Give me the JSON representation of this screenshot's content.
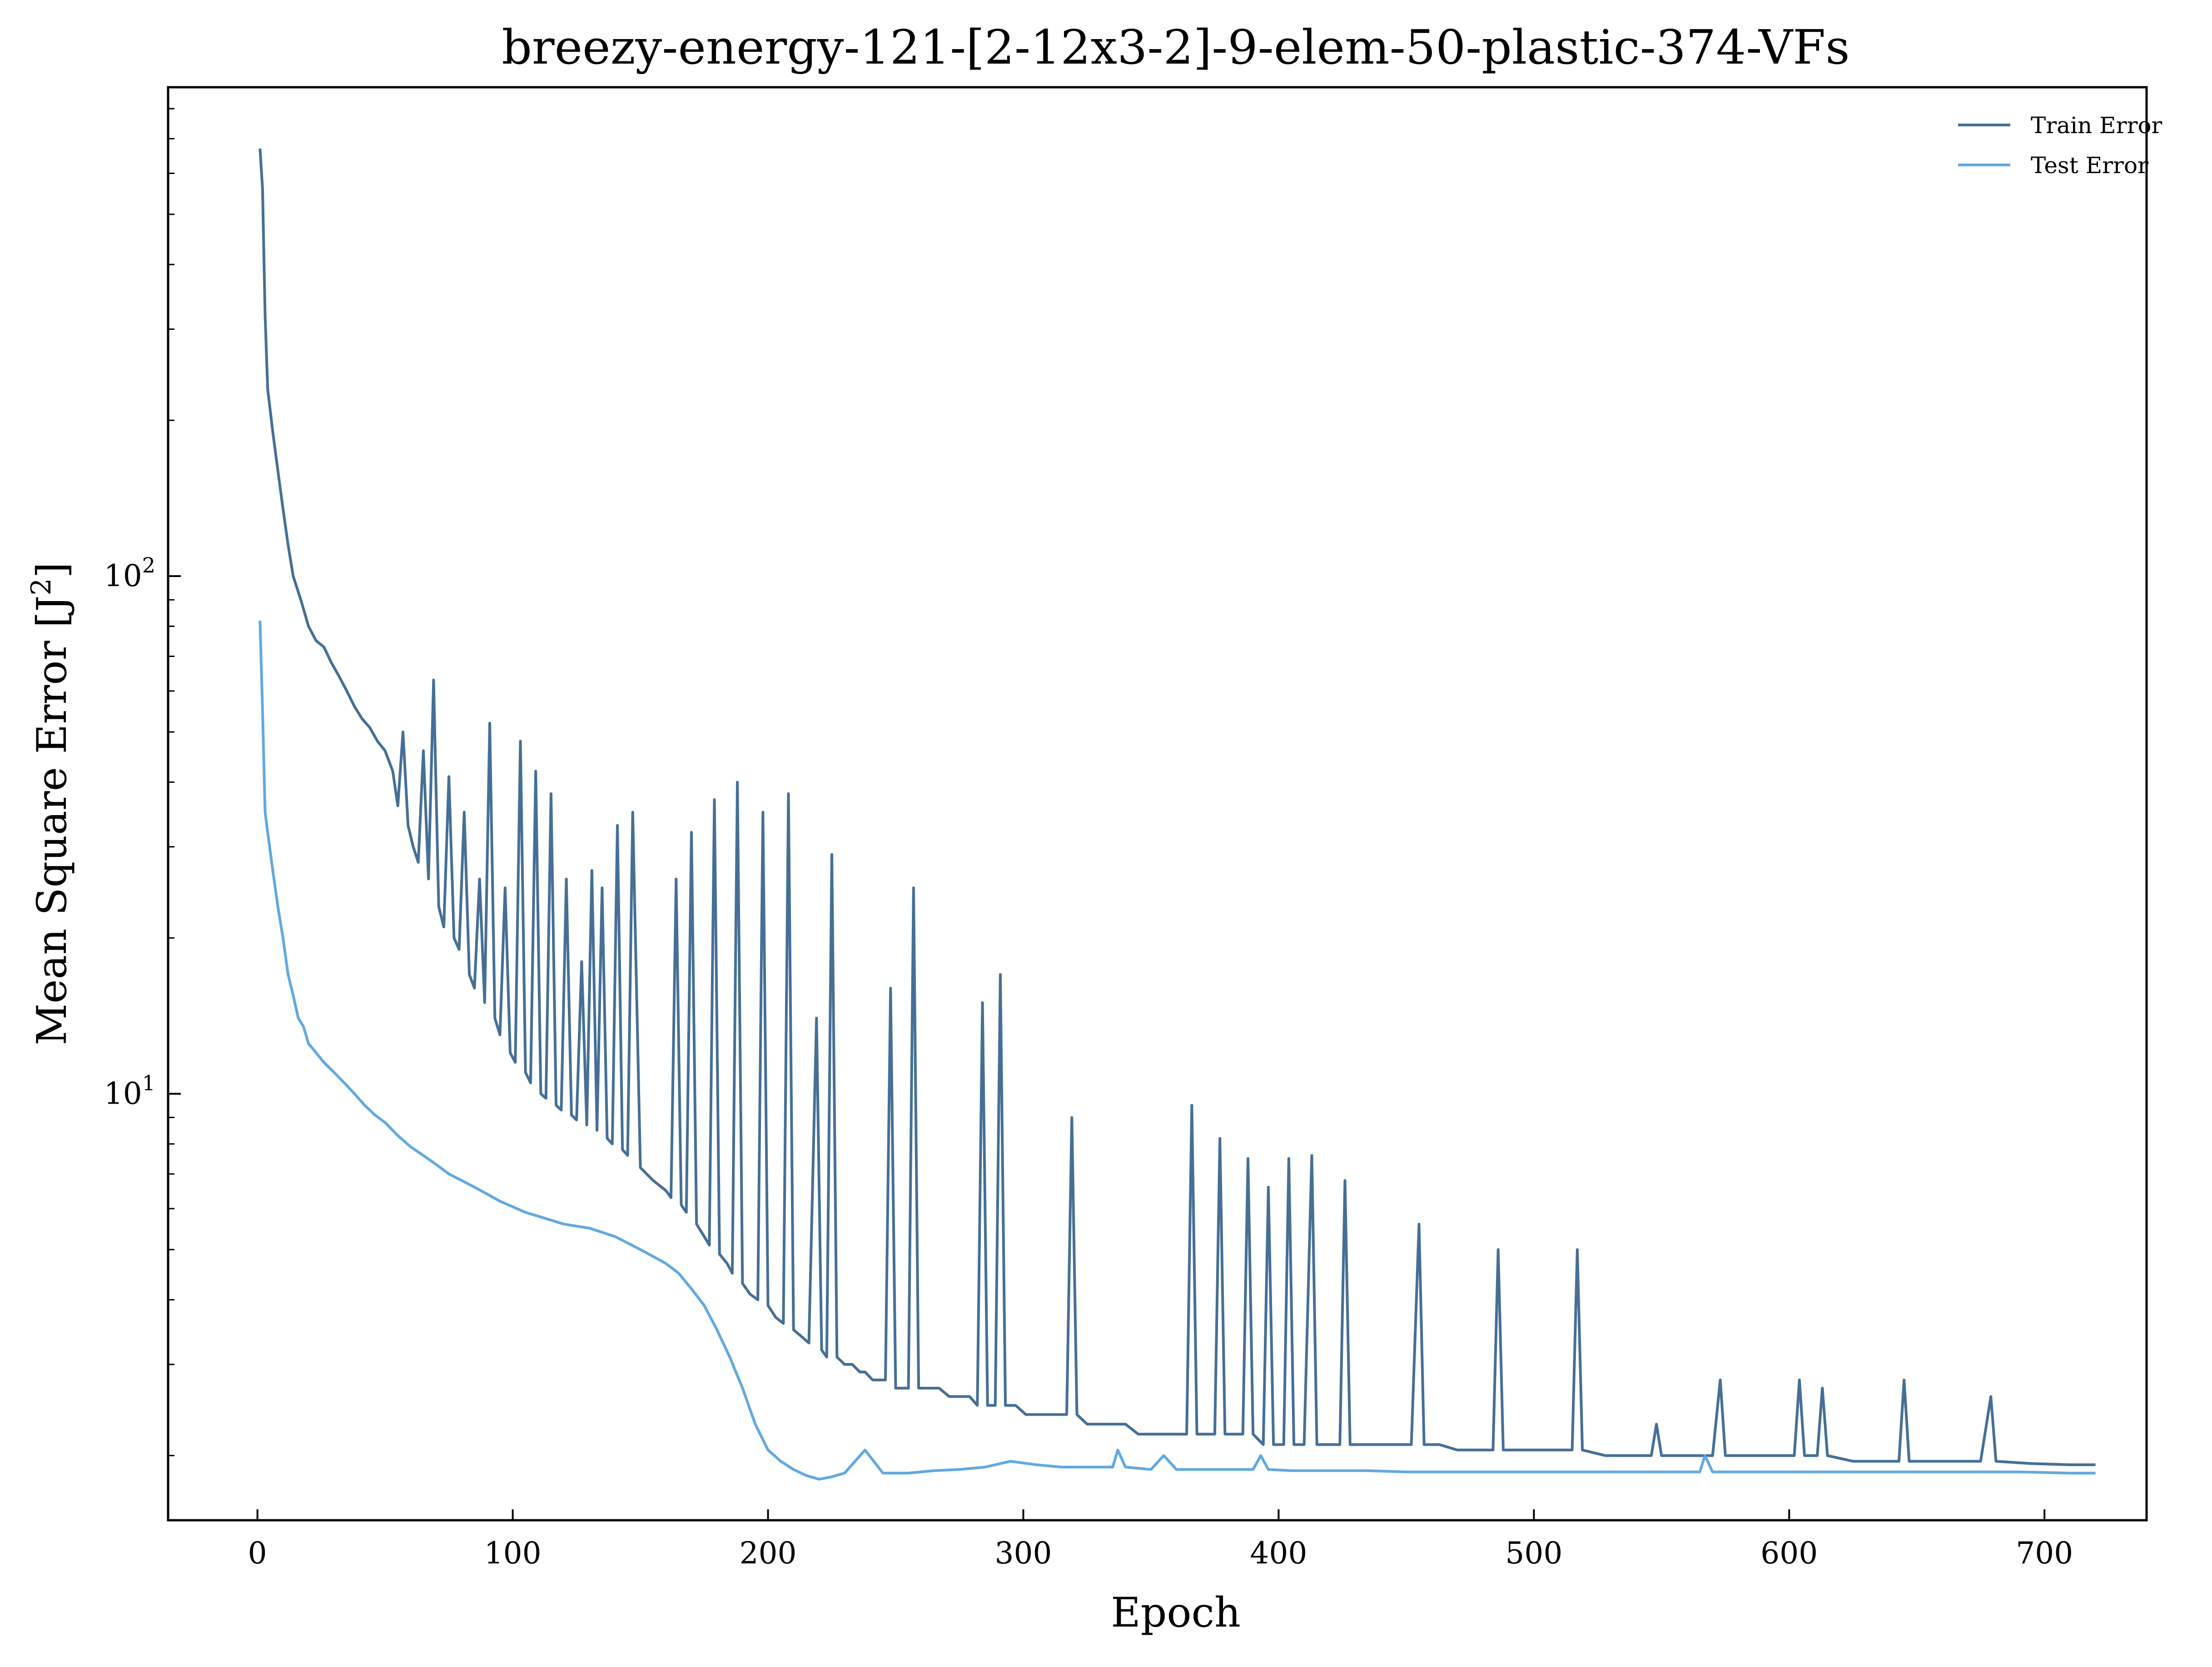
{
  "chart_data": {
    "type": "line",
    "title": "breezy-energy-121-[2-12x3-2]-9-elem-50-plastic-374-VFs",
    "xlabel": "Epoch",
    "ylabel": "Mean Square Error [J²]",
    "ylabel_base": "Mean Square Error [J",
    "ylabel_sup": "2",
    "ylabel_end": "]",
    "x_ticks": [
      0,
      100,
      200,
      300,
      400,
      500,
      600,
      700
    ],
    "x_tick_labels": [
      "0",
      "100",
      "200",
      "300",
      "400",
      "500",
      "600",
      "700"
    ],
    "y_scale": "log",
    "y_major_ticks": [
      {
        "value": 10,
        "base": "10",
        "exp": "1"
      },
      {
        "value": 100,
        "base": "10",
        "exp": "2"
      }
    ],
    "xlim": [
      -35,
      740
    ],
    "ylim": [
      1.5,
      880
    ],
    "grid": false,
    "legend": "top-right",
    "series": [
      {
        "name": "Train Error",
        "color": "#456f96",
        "points": [
          [
            1,
            670
          ],
          [
            2,
            560
          ],
          [
            3,
            320
          ],
          [
            4,
            230
          ],
          [
            6,
            190
          ],
          [
            8,
            160
          ],
          [
            10,
            135
          ],
          [
            12,
            115
          ],
          [
            14,
            100
          ],
          [
            17,
            90
          ],
          [
            20,
            80
          ],
          [
            23,
            75
          ],
          [
            26,
            73
          ],
          [
            29,
            68
          ],
          [
            32,
            64
          ],
          [
            35,
            60
          ],
          [
            38,
            56
          ],
          [
            41,
            53
          ],
          [
            44,
            51
          ],
          [
            47,
            48
          ],
          [
            50,
            46
          ],
          [
            53,
            42
          ],
          [
            55,
            36
          ],
          [
            57,
            50
          ],
          [
            59,
            33
          ],
          [
            61,
            30
          ],
          [
            63,
            28
          ],
          [
            65,
            46
          ],
          [
            67,
            26
          ],
          [
            69,
            63
          ],
          [
            71,
            23
          ],
          [
            73,
            21
          ],
          [
            75,
            41
          ],
          [
            77,
            20
          ],
          [
            79,
            19
          ],
          [
            81,
            35
          ],
          [
            83,
            17
          ],
          [
            85,
            16
          ],
          [
            87,
            26
          ],
          [
            89,
            15
          ],
          [
            91,
            52
          ],
          [
            93,
            14
          ],
          [
            95,
            13
          ],
          [
            97,
            25
          ],
          [
            99,
            12
          ],
          [
            101,
            11.5
          ],
          [
            103,
            48
          ],
          [
            105,
            11
          ],
          [
            107,
            10.5
          ],
          [
            109,
            42
          ],
          [
            111,
            10
          ],
          [
            113,
            9.8
          ],
          [
            115,
            38
          ],
          [
            117,
            9.5
          ],
          [
            119,
            9.3
          ],
          [
            121,
            26
          ],
          [
            123,
            9.1
          ],
          [
            125,
            8.9
          ],
          [
            127,
            18
          ],
          [
            129,
            8.7
          ],
          [
            131,
            27
          ],
          [
            133,
            8.5
          ],
          [
            135,
            25
          ],
          [
            137,
            8.2
          ],
          [
            139,
            8
          ],
          [
            141,
            33
          ],
          [
            143,
            7.8
          ],
          [
            145,
            7.6
          ],
          [
            147,
            35
          ],
          [
            150,
            7.2
          ],
          [
            155,
            6.8
          ],
          [
            160,
            6.5
          ],
          [
            162,
            6.3
          ],
          [
            164,
            26
          ],
          [
            166,
            6.1
          ],
          [
            168,
            5.9
          ],
          [
            170,
            32
          ],
          [
            172,
            5.6
          ],
          [
            175,
            5.3
          ],
          [
            177,
            5.1
          ],
          [
            179,
            37
          ],
          [
            181,
            4.9
          ],
          [
            184,
            4.7
          ],
          [
            186,
            4.5
          ],
          [
            188,
            40
          ],
          [
            190,
            4.3
          ],
          [
            193,
            4.1
          ],
          [
            196,
            4
          ],
          [
            198,
            35
          ],
          [
            200,
            3.9
          ],
          [
            203,
            3.7
          ],
          [
            206,
            3.6
          ],
          [
            208,
            38
          ],
          [
            210,
            3.5
          ],
          [
            213,
            3.4
          ],
          [
            216,
            3.3
          ],
          [
            219,
            14
          ],
          [
            221,
            3.2
          ],
          [
            223,
            3.1
          ],
          [
            225,
            29
          ],
          [
            227,
            3.1
          ],
          [
            230,
            3.0
          ],
          [
            233,
            3.0
          ],
          [
            236,
            2.9
          ],
          [
            238,
            2.9
          ],
          [
            241,
            2.8
          ],
          [
            244,
            2.8
          ],
          [
            246,
            2.8
          ],
          [
            248,
            16
          ],
          [
            250,
            2.7
          ],
          [
            253,
            2.7
          ],
          [
            255,
            2.7
          ],
          [
            257,
            25
          ],
          [
            259,
            2.7
          ],
          [
            263,
            2.7
          ],
          [
            267,
            2.7
          ],
          [
            271,
            2.6
          ],
          [
            275,
            2.6
          ],
          [
            279,
            2.6
          ],
          [
            282,
            2.5
          ],
          [
            284,
            15
          ],
          [
            286,
            2.5
          ],
          [
            289,
            2.5
          ],
          [
            291,
            17
          ],
          [
            293,
            2.5
          ],
          [
            297,
            2.5
          ],
          [
            301,
            2.4
          ],
          [
            305,
            2.4
          ],
          [
            309,
            2.4
          ],
          [
            313,
            2.4
          ],
          [
            317,
            2.4
          ],
          [
            319,
            9
          ],
          [
            321,
            2.4
          ],
          [
            325,
            2.3
          ],
          [
            330,
            2.3
          ],
          [
            335,
            2.3
          ],
          [
            340,
            2.3
          ],
          [
            345,
            2.2
          ],
          [
            350,
            2.2
          ],
          [
            355,
            2.2
          ],
          [
            360,
            2.2
          ],
          [
            364,
            2.2
          ],
          [
            366,
            9.5
          ],
          [
            368,
            2.2
          ],
          [
            372,
            2.2
          ],
          [
            375,
            2.2
          ],
          [
            377,
            8.2
          ],
          [
            379,
            2.2
          ],
          [
            383,
            2.2
          ],
          [
            386,
            2.2
          ],
          [
            388,
            7.5
          ],
          [
            390,
            2.2
          ],
          [
            394,
            2.1
          ],
          [
            396,
            6.6
          ],
          [
            398,
            2.1
          ],
          [
            402,
            2.1
          ],
          [
            404,
            7.5
          ],
          [
            406,
            2.1
          ],
          [
            410,
            2.1
          ],
          [
            413,
            7.6
          ],
          [
            415,
            2.1
          ],
          [
            420,
            2.1
          ],
          [
            424,
            2.1
          ],
          [
            426,
            6.8
          ],
          [
            428,
            2.1
          ],
          [
            433,
            2.1
          ],
          [
            438,
            2.1
          ],
          [
            443,
            2.1
          ],
          [
            448,
            2.1
          ],
          [
            452,
            2.1
          ],
          [
            455,
            5.6
          ],
          [
            457,
            2.1
          ],
          [
            463,
            2.1
          ],
          [
            470,
            2.05
          ],
          [
            478,
            2.05
          ],
          [
            484,
            2.05
          ],
          [
            486,
            5.0
          ],
          [
            488,
            2.05
          ],
          [
            495,
            2.05
          ],
          [
            503,
            2.05
          ],
          [
            510,
            2.05
          ],
          [
            515,
            2.05
          ],
          [
            517,
            5.0
          ],
          [
            519,
            2.05
          ],
          [
            528,
            2.0
          ],
          [
            538,
            2.0
          ],
          [
            546,
            2.0
          ],
          [
            548,
            2.3
          ],
          [
            550,
            2.0
          ],
          [
            560,
            2.0
          ],
          [
            570,
            2.0
          ],
          [
            573,
            2.8
          ],
          [
            575,
            2.0
          ],
          [
            585,
            2.0
          ],
          [
            595,
            2.0
          ],
          [
            602,
            2.0
          ],
          [
            604,
            2.8
          ],
          [
            606,
            2.0
          ],
          [
            611,
            2.0
          ],
          [
            613,
            2.7
          ],
          [
            615,
            2.0
          ],
          [
            625,
            1.95
          ],
          [
            635,
            1.95
          ],
          [
            643,
            1.95
          ],
          [
            645,
            2.8
          ],
          [
            647,
            1.95
          ],
          [
            660,
            1.95
          ],
          [
            675,
            1.95
          ],
          [
            679,
            2.6
          ],
          [
            681,
            1.95
          ],
          [
            695,
            1.93
          ],
          [
            710,
            1.92
          ],
          [
            720,
            1.92
          ]
        ]
      },
      {
        "name": "Test Error",
        "color": "#62a9e0",
        "points": [
          [
            1,
            82
          ],
          [
            2,
            55
          ],
          [
            3,
            35
          ],
          [
            4,
            32
          ],
          [
            6,
            27
          ],
          [
            8,
            23
          ],
          [
            10,
            20
          ],
          [
            12,
            17
          ],
          [
            14,
            15.5
          ],
          [
            16,
            14
          ],
          [
            18,
            13.5
          ],
          [
            20,
            12.5
          ],
          [
            23,
            12
          ],
          [
            26,
            11.5
          ],
          [
            30,
            11
          ],
          [
            34,
            10.5
          ],
          [
            38,
            10
          ],
          [
            42,
            9.5
          ],
          [
            46,
            9.1
          ],
          [
            50,
            8.8
          ],
          [
            55,
            8.3
          ],
          [
            60,
            7.9
          ],
          [
            65,
            7.6
          ],
          [
            70,
            7.3
          ],
          [
            75,
            7.0
          ],
          [
            80,
            6.8
          ],
          [
            85,
            6.6
          ],
          [
            90,
            6.4
          ],
          [
            95,
            6.2
          ],
          [
            100,
            6.05
          ],
          [
            105,
            5.9
          ],
          [
            110,
            5.8
          ],
          [
            115,
            5.7
          ],
          [
            120,
            5.6
          ],
          [
            125,
            5.55
          ],
          [
            130,
            5.5
          ],
          [
            135,
            5.4
          ],
          [
            140,
            5.3
          ],
          [
            145,
            5.15
          ],
          [
            150,
            5.0
          ],
          [
            155,
            4.85
          ],
          [
            160,
            4.7
          ],
          [
            165,
            4.5
          ],
          [
            170,
            4.2
          ],
          [
            175,
            3.9
          ],
          [
            180,
            3.5
          ],
          [
            185,
            3.1
          ],
          [
            190,
            2.7
          ],
          [
            195,
            2.3
          ],
          [
            200,
            2.05
          ],
          [
            205,
            1.95
          ],
          [
            210,
            1.88
          ],
          [
            215,
            1.83
          ],
          [
            220,
            1.8
          ],
          [
            225,
            1.82
          ],
          [
            230,
            1.85
          ],
          [
            238,
            2.05
          ],
          [
            245,
            1.85
          ],
          [
            255,
            1.85
          ],
          [
            265,
            1.87
          ],
          [
            275,
            1.88
          ],
          [
            285,
            1.9
          ],
          [
            295,
            1.95
          ],
          [
            305,
            1.92
          ],
          [
            315,
            1.9
          ],
          [
            325,
            1.9
          ],
          [
            335,
            1.9
          ],
          [
            337,
            2.05
          ],
          [
            340,
            1.9
          ],
          [
            350,
            1.88
          ],
          [
            355,
            2.0
          ],
          [
            360,
            1.88
          ],
          [
            370,
            1.88
          ],
          [
            380,
            1.88
          ],
          [
            390,
            1.88
          ],
          [
            393,
            2.0
          ],
          [
            396,
            1.88
          ],
          [
            405,
            1.87
          ],
          [
            420,
            1.87
          ],
          [
            435,
            1.87
          ],
          [
            450,
            1.86
          ],
          [
            470,
            1.86
          ],
          [
            490,
            1.86
          ],
          [
            510,
            1.86
          ],
          [
            530,
            1.86
          ],
          [
            550,
            1.86
          ],
          [
            565,
            1.86
          ],
          [
            567,
            2.0
          ],
          [
            570,
            1.86
          ],
          [
            590,
            1.86
          ],
          [
            610,
            1.86
          ],
          [
            630,
            1.86
          ],
          [
            650,
            1.86
          ],
          [
            670,
            1.86
          ],
          [
            690,
            1.86
          ],
          [
            710,
            1.85
          ],
          [
            720,
            1.85
          ]
        ]
      }
    ]
  }
}
